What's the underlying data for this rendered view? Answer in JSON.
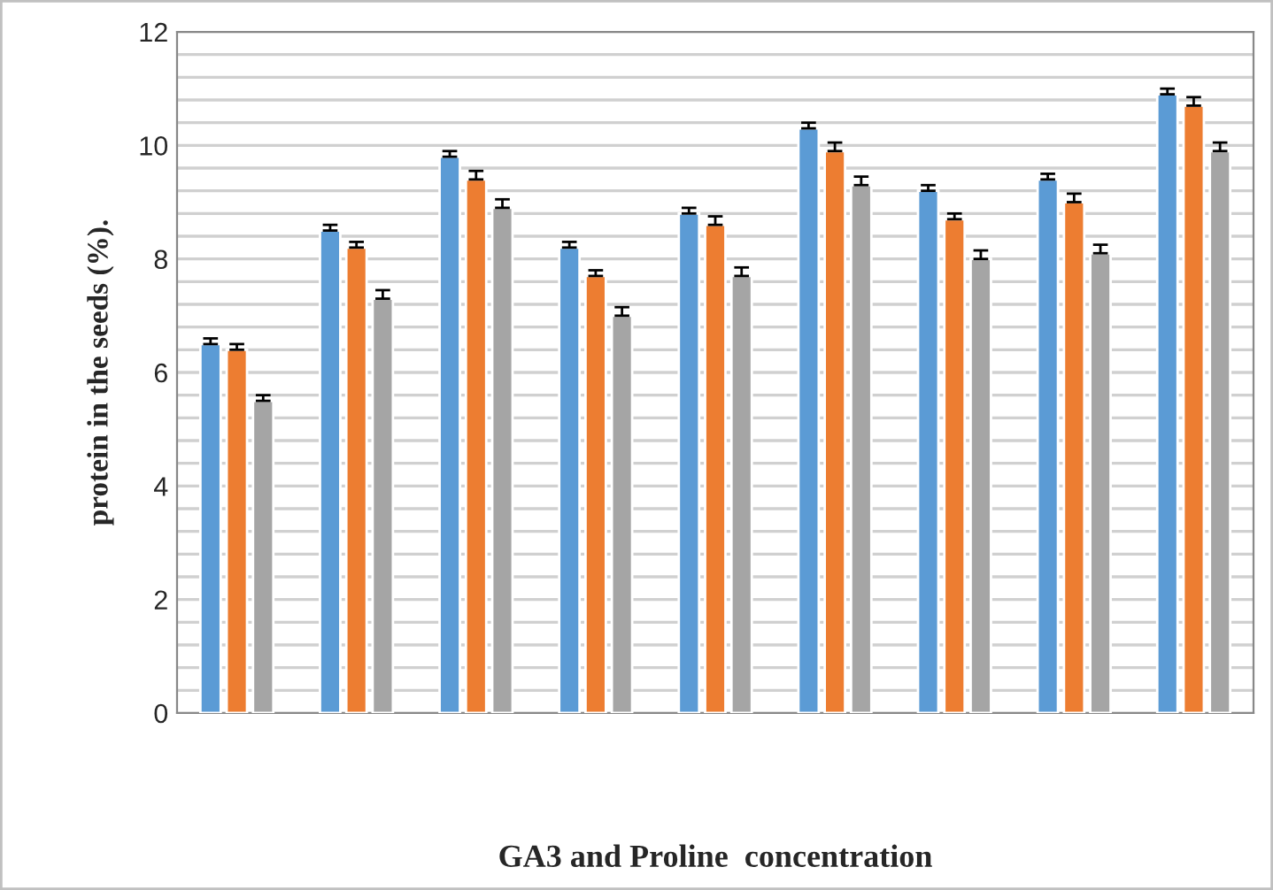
{
  "chart_data": {
    "type": "bar",
    "xlabel": "GA3 and Proline  concentration",
    "ylabel": "protein in the seeds (%).",
    "categories": [
      null,
      null,
      null,
      null,
      null,
      null,
      null,
      null,
      null
    ],
    "series": [
      {
        "color": "#5b9bd5",
        "values": [
          6.5,
          8.5,
          9.8,
          8.2,
          8.8,
          10.3,
          9.2,
          9.4,
          10.9
        ],
        "errors": [
          0.1,
          0.1,
          0.1,
          0.1,
          0.1,
          0.1,
          0.1,
          0.1,
          0.1
        ]
      },
      {
        "color": "#ed7d31",
        "values": [
          6.4,
          8.2,
          9.4,
          7.7,
          8.6,
          9.9,
          8.7,
          9.0,
          10.7
        ],
        "errors": [
          0.1,
          0.1,
          0.15,
          0.1,
          0.15,
          0.15,
          0.1,
          0.15,
          0.15
        ]
      },
      {
        "color": "#a5a5a5",
        "values": [
          5.5,
          7.3,
          8.9,
          7.0,
          7.7,
          9.3,
          8.0,
          8.1,
          9.9
        ],
        "errors": [
          0.1,
          0.15,
          0.15,
          0.15,
          0.15,
          0.15,
          0.15,
          0.15,
          0.15
        ]
      }
    ],
    "ylim": [
      0,
      12
    ],
    "yticks": [
      0,
      {
        "value": 0.4,
        "label": null
      },
      {
        "value": 0.8,
        "label": null
      },
      {
        "value": 1.2,
        "label": null
      },
      {
        "value": 1.6,
        "label": null
      },
      2,
      {
        "value": 2.4,
        "label": null
      },
      {
        "value": 2.8,
        "label": null
      },
      {
        "value": 3.2,
        "label": null
      },
      {
        "value": 3.6,
        "label": null
      },
      4,
      {
        "value": 4.4,
        "label": null
      },
      {
        "value": 4.8,
        "label": null
      },
      {
        "value": 5.2,
        "label": null
      },
      {
        "value": 5.6,
        "label": null
      },
      6,
      {
        "value": 6.4,
        "label": null
      },
      {
        "value": 6.8,
        "label": null
      },
      {
        "value": 7.2,
        "label": null
      },
      {
        "value": 7.6,
        "label": null
      },
      8,
      {
        "value": 8.4,
        "label": null
      },
      {
        "value": 8.8,
        "label": null
      },
      {
        "value": 9.2,
        "label": null
      },
      {
        "value": 9.6,
        "label": null
      },
      10,
      {
        "value": 10.4,
        "label": null
      },
      {
        "value": 10.8,
        "label": null
      },
      {
        "value": 11.2,
        "label": null
      },
      {
        "value": 11.6,
        "label": null
      },
      12
    ],
    "grid": "y",
    "legend": false
  }
}
